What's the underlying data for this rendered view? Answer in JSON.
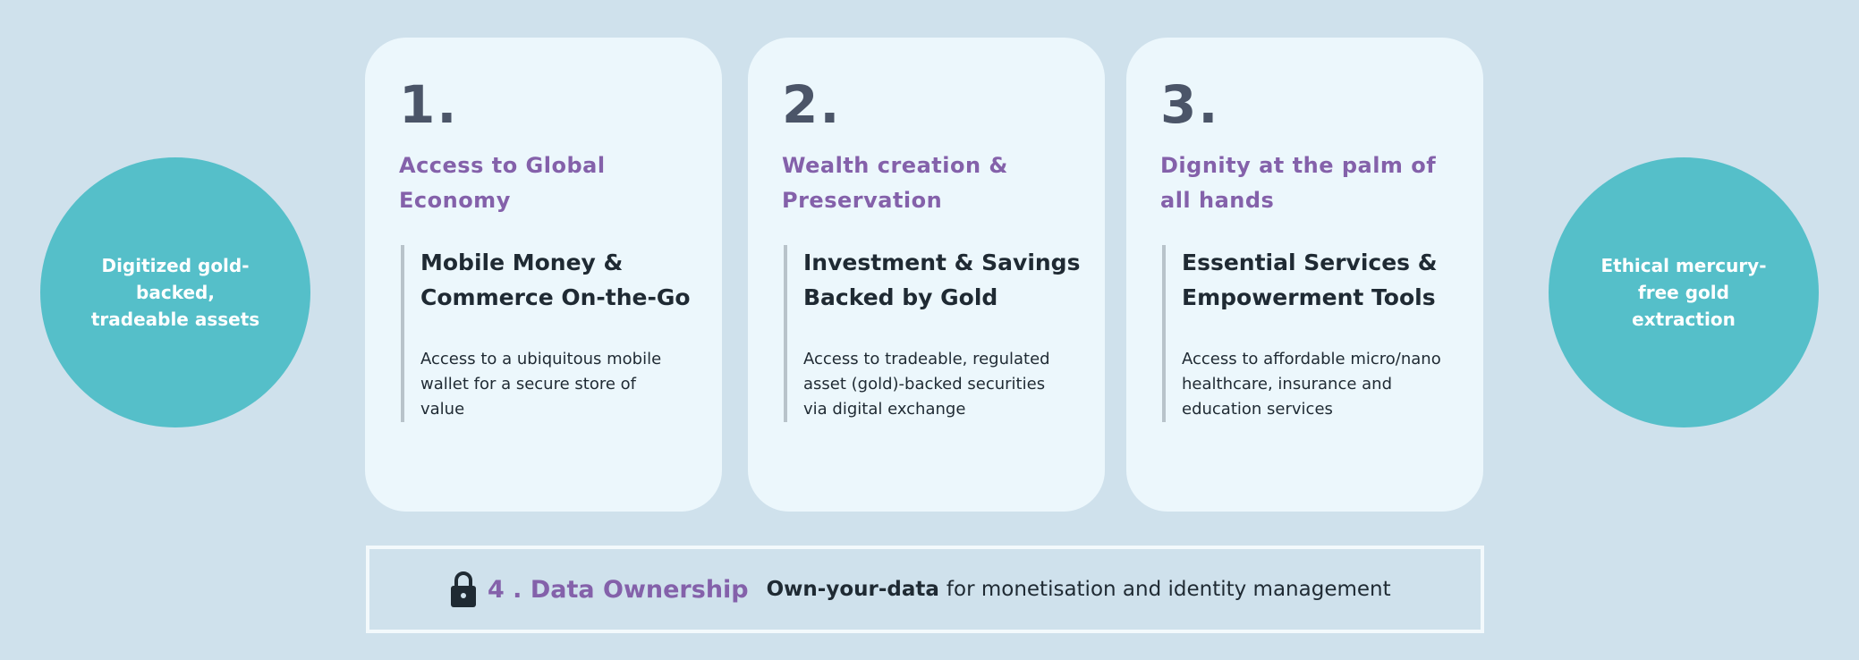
{
  "left_circle": {
    "text": "Digitized gold-backed, tradeable assets"
  },
  "right_circle": {
    "text": "Ethical mercury-free gold extraction"
  },
  "cards": [
    {
      "number": "1.",
      "title": "Access to Global Economy",
      "subtitle": "Mobile Money & Commerce On-the-Go",
      "body": "Access to a ubiquitous mobile wallet for a secure store of value"
    },
    {
      "number": "2.",
      "title": "Wealth creation & Preservation",
      "subtitle": "Investment & Savings Backed by Gold",
      "body": "Access to tradeable, regulated asset (gold)-backed securities via digital exchange"
    },
    {
      "number": "3.",
      "title": "Dignity at the palm of all hands",
      "subtitle": "Essential Services & Empowerment Tools",
      "body": "Access to affordable micro/nano healthcare, insurance and education services"
    }
  ],
  "data_ownership": {
    "icon": "lock-icon",
    "title": "4 . Data Ownership",
    "emphasis": "Own-your-data",
    "text": "for monetisation and identity management"
  },
  "colors": {
    "background": "#cfe1ec",
    "card": "#ecf7fc",
    "teal": "#55bfc9",
    "purple": "#8461aa",
    "dark": "#1f2a33"
  }
}
